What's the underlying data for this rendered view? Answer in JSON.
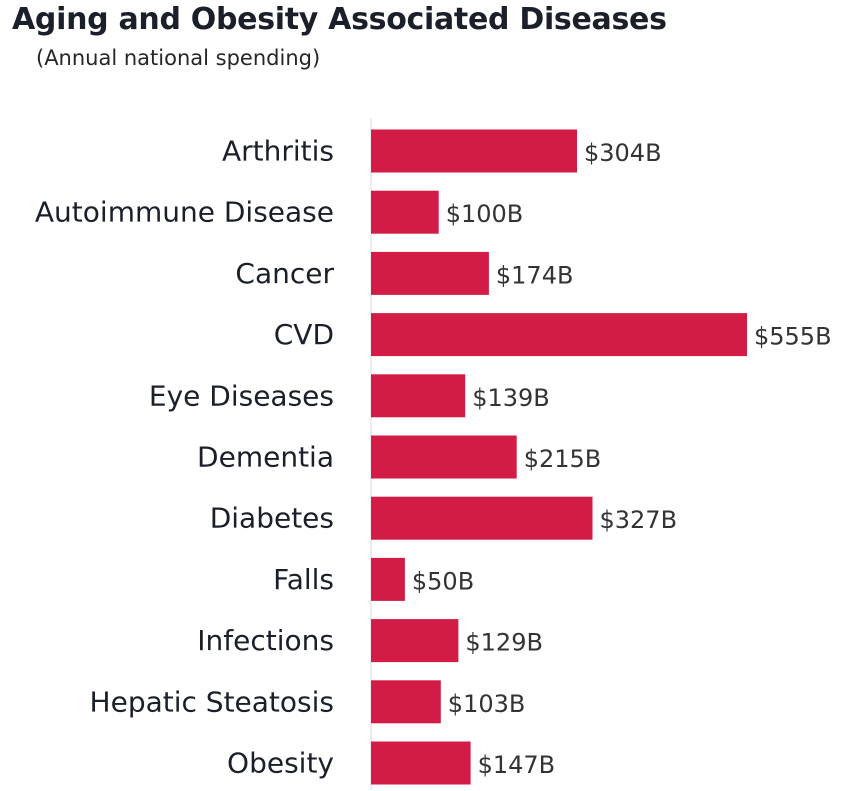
{
  "chart_data": {
    "type": "bar",
    "orientation": "horizontal",
    "title": "Aging and Obesity Associated Diseases",
    "subtitle": "(Annual national spending)",
    "categories": [
      "Arthritis",
      "Autoimmune Disease",
      "Cancer",
      "CVD",
      "Eye Diseases",
      "Dementia",
      "Diabetes",
      "Falls",
      "Infections",
      "Hepatic Steatosis",
      "Obesity"
    ],
    "values": [
      304,
      100,
      174,
      555,
      139,
      215,
      327,
      50,
      129,
      103,
      147
    ],
    "data_labels": [
      "$304B",
      "$100B",
      "$174B",
      "$555B",
      "$139B",
      "$215B",
      "$327B",
      "$50B",
      "$129B",
      "$103B",
      "$147B"
    ],
    "xlim": [
      0,
      555
    ],
    "grid": false,
    "legend": "none",
    "bar_color": "#d31c45",
    "axis_color": "#d9d9d9"
  }
}
